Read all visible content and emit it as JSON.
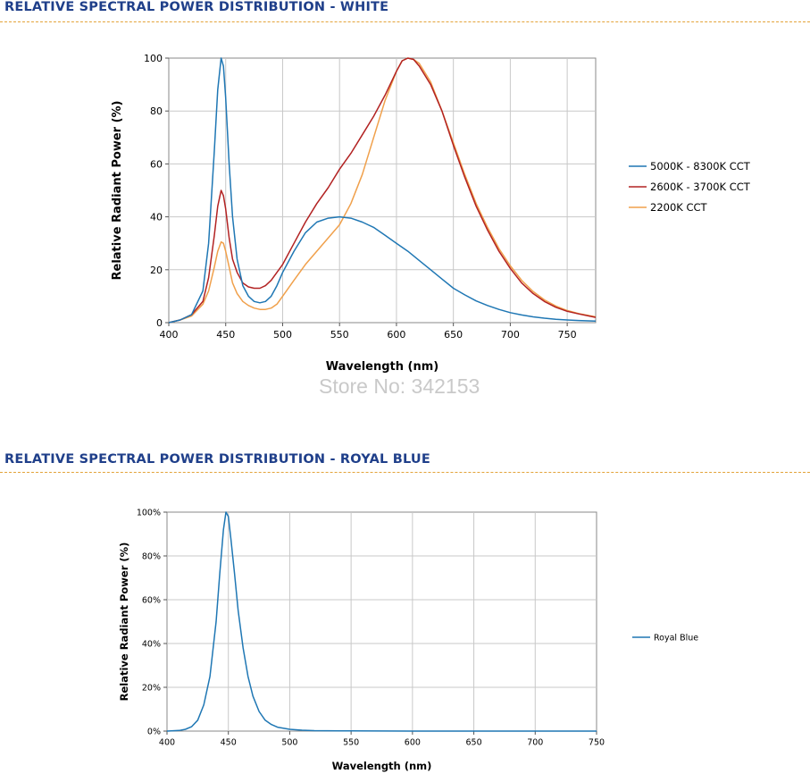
{
  "sections": [
    {
      "title": "RELATIVE SPECTRAL POWER DISTRIBUTION - WHITE"
    },
    {
      "title": "RELATIVE SPECTRAL POWER DISTRIBUTION - ROYAL BLUE"
    }
  ],
  "watermark": "Store No: 342153",
  "colors": {
    "title": "#1f3f8a",
    "divider": "#e3a33a",
    "blue": "#1f77b4",
    "red": "#b22222",
    "orange": "#f0a04b"
  },
  "chart_data": [
    {
      "type": "line",
      "title": "RELATIVE SPECTRAL POWER DISTRIBUTION - WHITE",
      "xlabel": "Wavelength (nm)",
      "ylabel": "Relative Radiant Power (%)",
      "xlim": [
        400,
        775
      ],
      "ylim": [
        0,
        100
      ],
      "xticks": [
        400,
        450,
        500,
        550,
        600,
        650,
        700,
        750
      ],
      "yticks": [
        0,
        20,
        40,
        60,
        80,
        100
      ],
      "ytick_labels": [
        "0",
        "20",
        "40",
        "60",
        "80",
        "100"
      ],
      "grid": true,
      "legend": "right",
      "series": [
        {
          "name": "5000K - 8300K CCT",
          "color": "#1f77b4",
          "x": [
            400,
            410,
            420,
            430,
            435,
            440,
            443,
            446,
            448,
            450,
            453,
            456,
            460,
            465,
            470,
            475,
            480,
            485,
            490,
            495,
            500,
            510,
            520,
            530,
            540,
            550,
            560,
            570,
            580,
            590,
            600,
            610,
            620,
            630,
            640,
            650,
            660,
            670,
            680,
            690,
            700,
            710,
            720,
            730,
            740,
            750,
            760,
            775
          ],
          "y": [
            0,
            1,
            3,
            12,
            30,
            65,
            88,
            100,
            97,
            85,
            60,
            40,
            24,
            14,
            10,
            8,
            7.5,
            8,
            10,
            14,
            19,
            27,
            34,
            38,
            39.5,
            40,
            39.5,
            38,
            36,
            33,
            30,
            27,
            23.5,
            20,
            16.5,
            13,
            10.5,
            8.2,
            6.5,
            5,
            3.8,
            2.9,
            2.2,
            1.7,
            1.3,
            1,
            0.8,
            0.6
          ]
        },
        {
          "name": "2600K - 3700K CCT",
          "color": "#b22222",
          "x": [
            400,
            410,
            420,
            430,
            435,
            440,
            443,
            446,
            448,
            450,
            453,
            456,
            460,
            465,
            470,
            475,
            480,
            485,
            490,
            500,
            510,
            520,
            530,
            540,
            550,
            560,
            570,
            580,
            590,
            600,
            605,
            610,
            615,
            620,
            630,
            640,
            650,
            660,
            670,
            680,
            690,
            700,
            710,
            720,
            730,
            740,
            750,
            760,
            775
          ],
          "y": [
            0,
            1,
            3,
            8,
            17,
            33,
            44,
            50,
            48,
            43,
            32,
            24,
            19,
            15,
            13.5,
            13,
            13,
            14,
            16,
            22,
            30,
            38,
            45,
            51,
            58,
            64,
            71,
            78,
            86,
            95,
            99,
            100,
            99.5,
            97,
            90,
            80,
            67,
            55,
            44,
            35,
            27,
            20.5,
            15,
            11,
            8,
            5.8,
            4.3,
            3.3,
            2
          ]
        },
        {
          "name": "2200K CCT",
          "color": "#f0a04b",
          "x": [
            400,
            410,
            420,
            430,
            435,
            440,
            443,
            446,
            448,
            450,
            453,
            456,
            460,
            465,
            470,
            475,
            480,
            485,
            490,
            495,
            500,
            510,
            520,
            530,
            540,
            550,
            560,
            570,
            580,
            590,
            600,
            605,
            610,
            615,
            620,
            630,
            640,
            650,
            660,
            670,
            680,
            690,
            700,
            710,
            720,
            730,
            740,
            750,
            760,
            775
          ],
          "y": [
            0,
            1,
            2.5,
            7,
            12,
            21,
            27,
            30.5,
            30,
            27,
            21,
            15,
            11,
            8,
            6.5,
            5.5,
            5,
            5,
            5.5,
            7,
            10,
            16,
            22,
            27,
            32,
            37,
            45,
            56,
            70,
            84,
            95,
            99,
            100,
            99.5,
            98,
            91,
            80,
            68,
            56,
            45,
            36,
            28,
            21.5,
            16,
            11.8,
            8.6,
            6.3,
            4.6,
            3.4,
            2.2
          ]
        }
      ]
    },
    {
      "type": "line",
      "title": "RELATIVE SPECTRAL POWER DISTRIBUTION - ROYAL BLUE",
      "xlabel": "Wavelength (nm)",
      "ylabel": "Relative Radiant Power (%)",
      "xlim": [
        400,
        750
      ],
      "ylim": [
        0,
        100
      ],
      "xticks": [
        400,
        450,
        500,
        550,
        600,
        650,
        700,
        750
      ],
      "yticks": [
        0,
        20,
        40,
        60,
        80,
        100
      ],
      "ytick_labels": [
        "0%",
        "20%",
        "40%",
        "60%",
        "80%",
        "100%"
      ],
      "grid": true,
      "legend": "right",
      "series": [
        {
          "name": "Royal Blue",
          "color": "#1f77b4",
          "x": [
            400,
            410,
            415,
            420,
            425,
            430,
            435,
            440,
            443,
            446,
            448,
            450,
            452,
            455,
            458,
            462,
            466,
            470,
            475,
            480,
            485,
            490,
            500,
            510,
            520,
            550,
            600,
            650,
            700,
            750
          ],
          "y": [
            0,
            0.3,
            0.8,
            2,
            5,
            12,
            25,
            50,
            72,
            92,
            100,
            98,
            88,
            72,
            55,
            38,
            25,
            16,
            9,
            5,
            3,
            1.8,
            0.8,
            0.4,
            0.2,
            0.1,
            0,
            0,
            0,
            0
          ]
        }
      ]
    }
  ]
}
